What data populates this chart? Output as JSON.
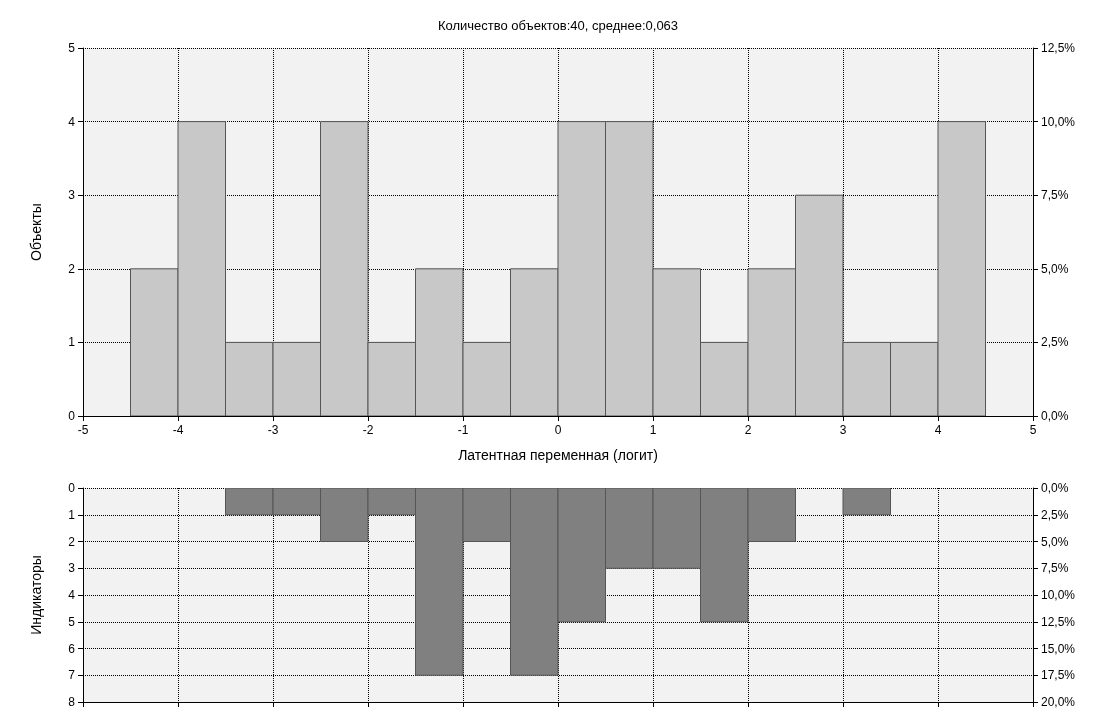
{
  "chart_data": [
    {
      "type": "histogram",
      "title": "Количество объектов:40, среднее:0,063",
      "xlabel": "Латентная переменная (логит)",
      "ylabel": "Объекты",
      "color": "#c8c8c8",
      "bins": [
        -5,
        -4.5,
        -4,
        -3.5,
        -3,
        -2.5,
        -2,
        -1.5,
        -1,
        -0.5,
        0,
        0.5,
        1,
        1.5,
        2,
        2.5,
        3,
        3.5,
        4,
        4.5,
        5
      ],
      "values": [
        0,
        2,
        4,
        1,
        1,
        4,
        1,
        2,
        1,
        2,
        4,
        4,
        2,
        1,
        2,
        3,
        1,
        1,
        4,
        0
      ],
      "xlim": [
        -5,
        5
      ],
      "xticks": [
        -5,
        -4,
        -3,
        -2,
        -1,
        0,
        1,
        2,
        3,
        4,
        5
      ],
      "ylim": [
        0,
        5
      ],
      "yticks": [
        0,
        1,
        2,
        3,
        4,
        5
      ],
      "y2lim": [
        0,
        12.5
      ],
      "y2ticks": [
        {
          "value": 0,
          "label": "0,0%"
        },
        {
          "value": 2.5,
          "label": "2,5%"
        },
        {
          "value": 5,
          "label": "5,0%"
        },
        {
          "value": 7.5,
          "label": "7,5%"
        },
        {
          "value": 10,
          "label": "10,0%"
        },
        {
          "value": 12.5,
          "label": "12,5%"
        }
      ],
      "grid": true
    },
    {
      "type": "histogram",
      "ylabel": "Индикаторы",
      "color": "#808080",
      "bins": [
        -5,
        -4.5,
        -4,
        -3.5,
        -3,
        -2.5,
        -2,
        -1.5,
        -1,
        -0.5,
        0,
        0.5,
        1,
        1.5,
        2,
        2.5,
        3,
        3.5,
        4,
        4.5,
        5
      ],
      "values": [
        0,
        0,
        0,
        1,
        1,
        2,
        1,
        7,
        2,
        7,
        5,
        3,
        3,
        5,
        2,
        0,
        1,
        0,
        0,
        0
      ],
      "xlim": [
        -5,
        5
      ],
      "xticks": [
        -5,
        -4,
        -3,
        -2,
        -1,
        0,
        1,
        2,
        3,
        4,
        5
      ],
      "ylim": [
        8,
        0
      ],
      "yticks": [
        0,
        1,
        2,
        3,
        4,
        5,
        6,
        7,
        8
      ],
      "y2lim": [
        20,
        0
      ],
      "y2ticks": [
        {
          "value": 0,
          "label": "0,0%"
        },
        {
          "value": 2.5,
          "label": "2,5%"
        },
        {
          "value": 5,
          "label": "5,0%"
        },
        {
          "value": 7.5,
          "label": "7,5%"
        },
        {
          "value": 10,
          "label": "10,0%"
        },
        {
          "value": 12.5,
          "label": "12,5%"
        },
        {
          "value": 15,
          "label": "15,0%"
        },
        {
          "value": 17.5,
          "label": "17,5%"
        },
        {
          "value": 20,
          "label": "20,0%"
        }
      ],
      "tick_labels": "y",
      "grid": true
    }
  ]
}
